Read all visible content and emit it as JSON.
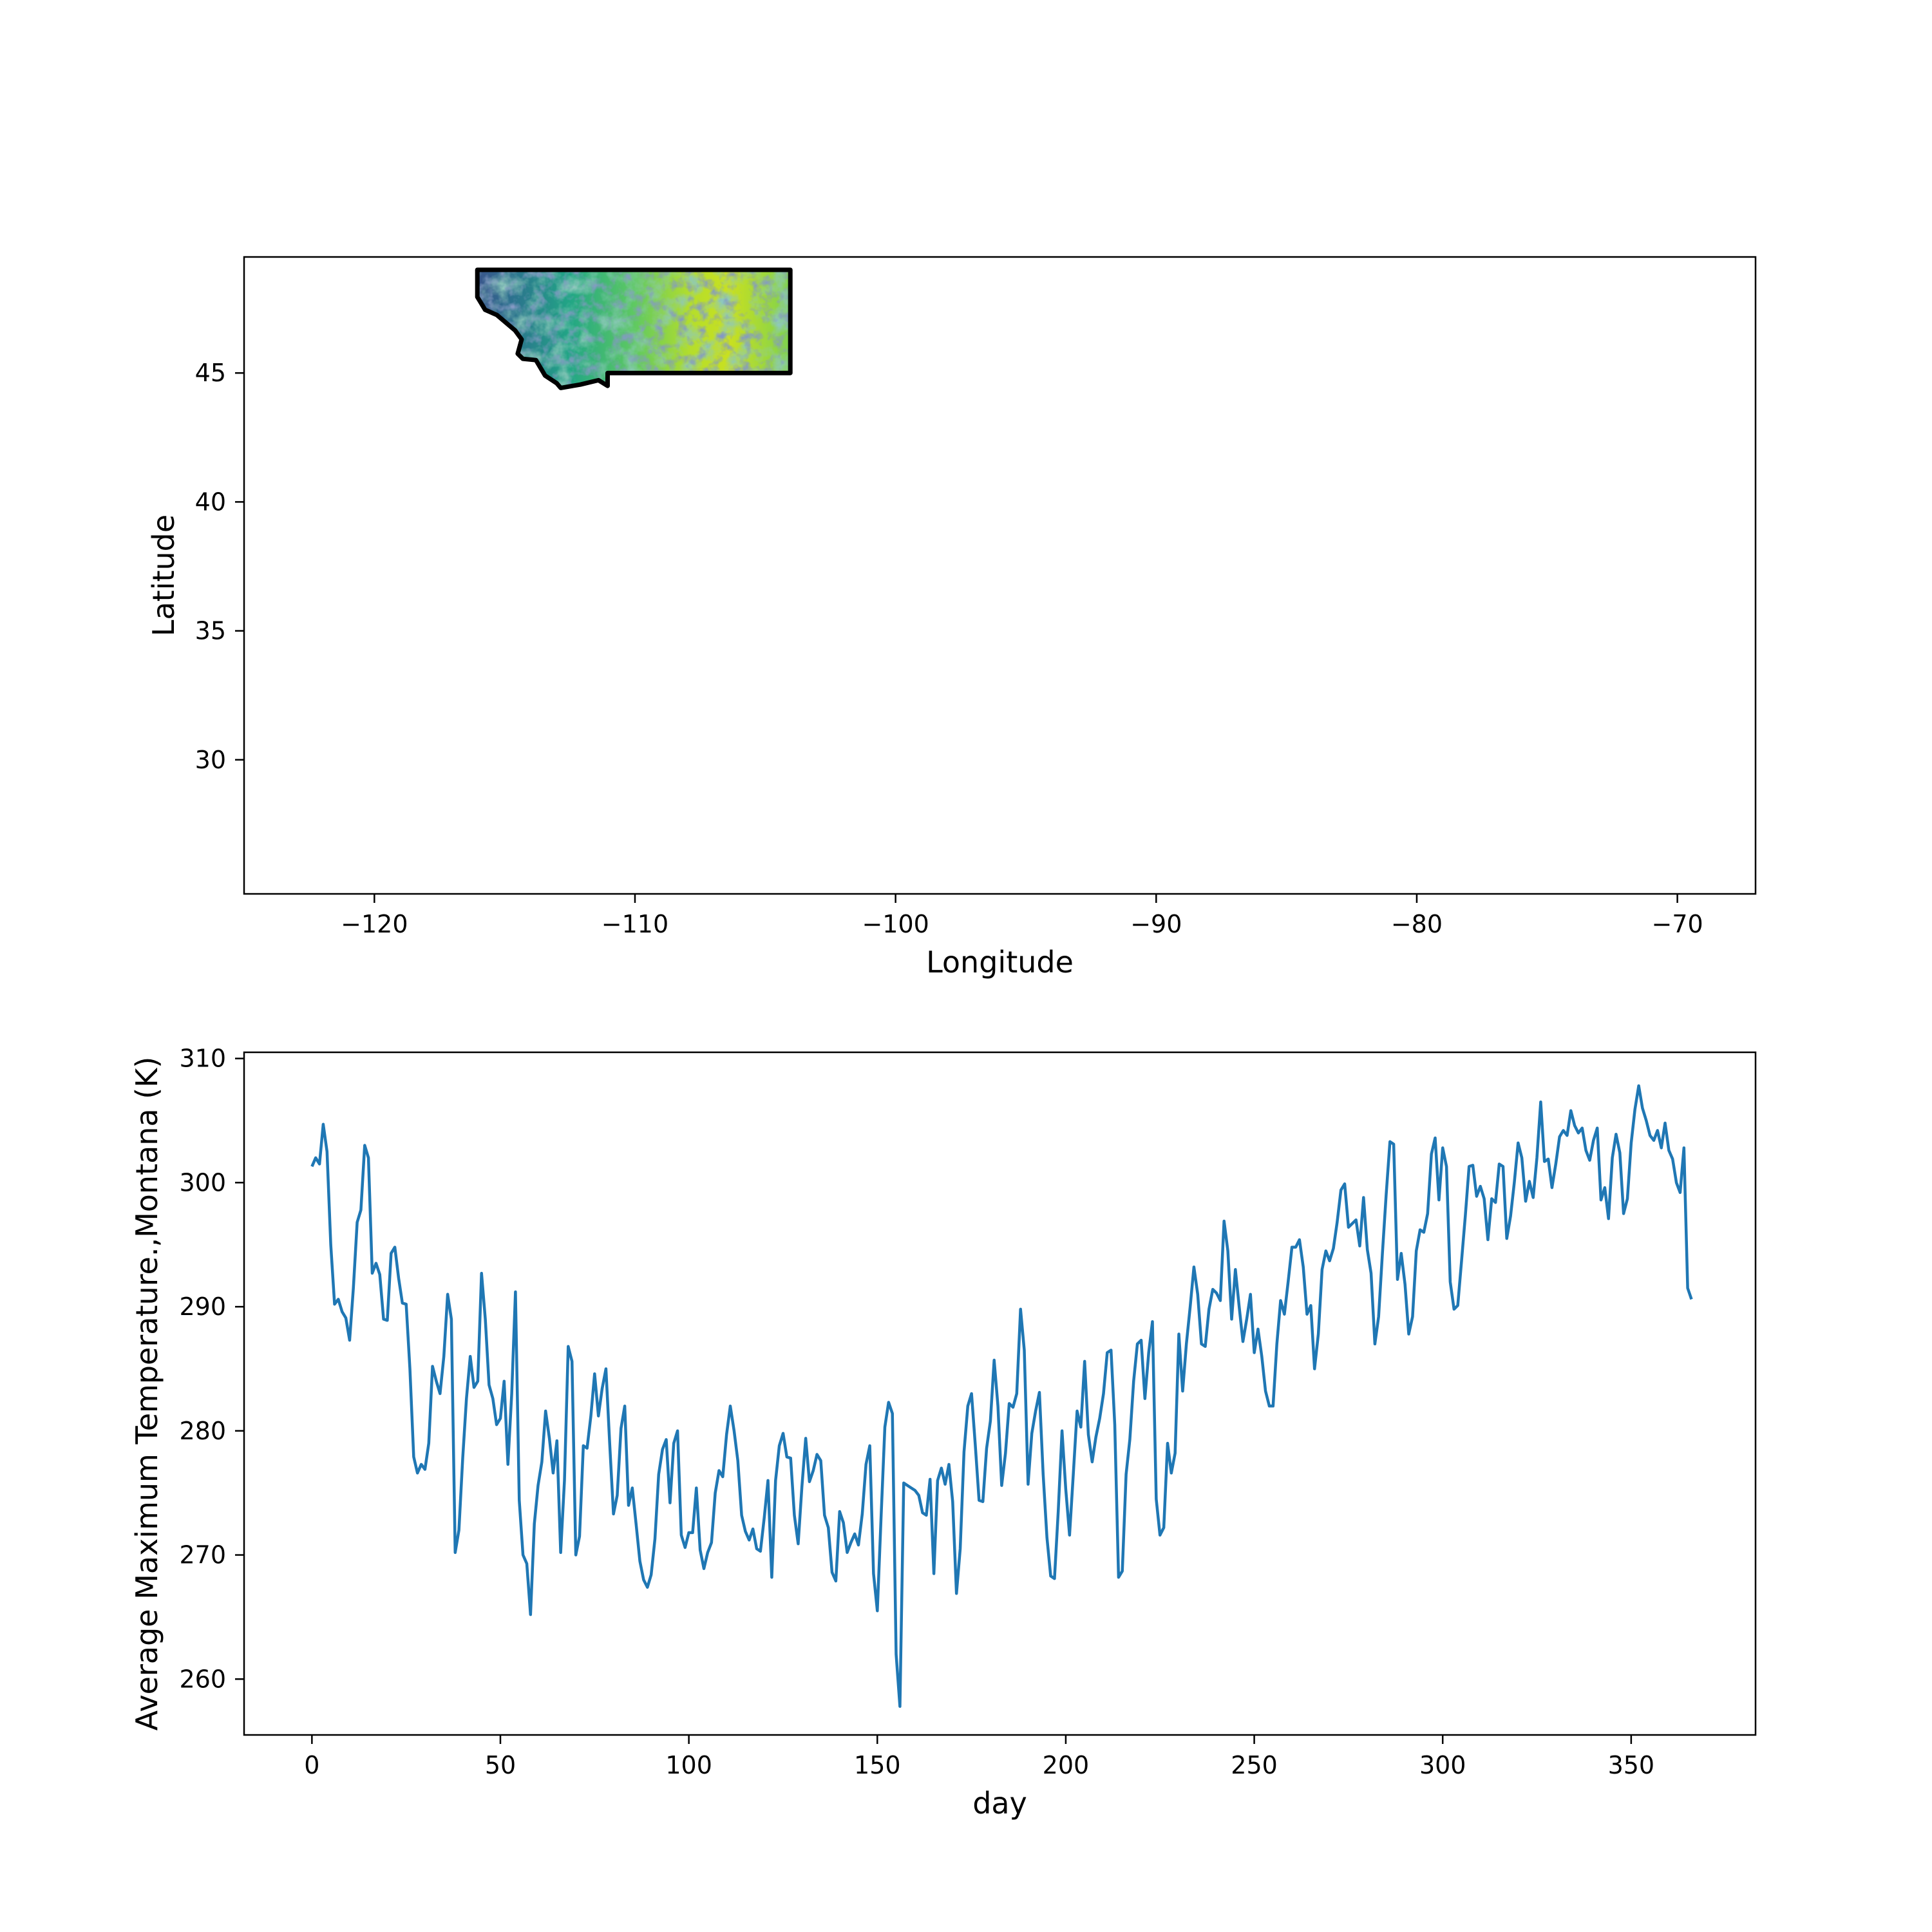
{
  "chart_data": [
    {
      "type": "heatmap",
      "subject": "Montana state outline",
      "xlabel": "Longitude",
      "ylabel": "Latitude",
      "xlim": [
        -125,
        -67
      ],
      "ylim": [
        24.8,
        49.5
      ],
      "xticks": [
        -120,
        -110,
        -100,
        -90,
        -80,
        -70
      ],
      "xtick_labels": [
        "−120",
        "−110",
        "−100",
        "−90",
        "−80",
        "−70"
      ],
      "yticks": [
        30,
        35,
        40,
        45
      ],
      "ytick_labels": [
        "30",
        "35",
        "40",
        "45"
      ],
      "grid": false,
      "colormap": "viridis",
      "outline_color": "#000000",
      "outline": [
        [
          -116.05,
          49.0
        ],
        [
          -104.04,
          49.0
        ],
        [
          -104.04,
          45.0
        ],
        [
          -111.05,
          45.0
        ],
        [
          -111.05,
          44.5
        ],
        [
          -111.4,
          44.72
        ],
        [
          -112.1,
          44.55
        ],
        [
          -112.85,
          44.42
        ],
        [
          -113.0,
          44.6
        ],
        [
          -113.45,
          44.9
        ],
        [
          -113.8,
          45.5
        ],
        [
          -114.3,
          45.55
        ],
        [
          -114.5,
          45.75
        ],
        [
          -114.35,
          46.3
        ],
        [
          -114.6,
          46.65
        ],
        [
          -115.3,
          47.25
        ],
        [
          -115.75,
          47.45
        ],
        [
          -116.05,
          47.95
        ],
        [
          -116.05,
          49.0
        ]
      ]
    },
    {
      "type": "line",
      "xlabel": "day",
      "ylabel": "Average Maximum Temperature.,Montana (K)",
      "xlim": [
        -18,
        383
      ],
      "ylim": [
        255.5,
        310.5
      ],
      "xticks": [
        0,
        50,
        100,
        150,
        200,
        250,
        300,
        350
      ],
      "yticks": [
        260,
        270,
        280,
        290,
        300,
        310
      ],
      "grid": false,
      "color": "#1f77b4",
      "x_start": 0,
      "x_step": 1,
      "y": [
        301.3,
        302.0,
        301.5,
        304.7,
        302.5,
        295.0,
        290.2,
        290.6,
        289.6,
        289.1,
        287.3,
        291.5,
        296.8,
        297.8,
        303.0,
        302.0,
        292.7,
        293.5,
        292.6,
        289.0,
        288.9,
        294.3,
        294.8,
        292.3,
        290.3,
        290.2,
        285.0,
        277.9,
        276.6,
        277.3,
        276.9,
        279.0,
        285.2,
        284.0,
        283.0,
        286.0,
        291.0,
        289.0,
        270.2,
        272.0,
        277.8,
        282.6,
        286.0,
        283.5,
        284.0,
        292.7,
        289.0,
        283.7,
        282.6,
        280.5,
        281.0,
        284.0,
        277.3,
        283.0,
        291.2,
        274.4,
        270.0,
        269.3,
        265.2,
        272.5,
        275.6,
        277.5,
        281.6,
        279.4,
        276.6,
        279.2,
        270.2,
        276.0,
        286.8,
        285.6,
        270.0,
        271.5,
        278.8,
        278.6,
        281.2,
        284.6,
        281.2,
        283.4,
        285.0,
        279.0,
        273.3,
        274.8,
        280.2,
        282.0,
        274.0,
        275.4,
        272.5,
        269.5,
        268.0,
        267.4,
        268.4,
        271.3,
        276.5,
        278.5,
        279.3,
        274.2,
        279.0,
        280.0,
        271.6,
        270.6,
        271.8,
        271.8,
        275.4,
        270.4,
        268.9,
        270.2,
        271.0,
        275.0,
        276.8,
        276.3,
        279.7,
        282.0,
        280.0,
        277.6,
        273.2,
        271.9,
        271.2,
        272.1,
        270.5,
        270.3,
        273.0,
        276.0,
        268.2,
        276.0,
        278.8,
        279.8,
        277.9,
        277.8,
        273.2,
        270.9,
        275.5,
        279.4,
        275.9,
        276.8,
        278.1,
        277.6,
        273.2,
        272.2,
        268.6,
        267.9,
        273.5,
        272.6,
        270.2,
        271.0,
        271.7,
        270.8,
        273.3,
        277.3,
        278.8,
        268.5,
        265.5,
        273.0,
        280.3,
        282.3,
        281.4,
        262.0,
        257.8,
        275.8,
        275.6,
        275.4,
        275.2,
        274.8,
        273.4,
        273.2,
        276.1,
        268.5,
        276.0,
        277.0,
        275.7,
        277.3,
        274.3,
        266.9,
        270.5,
        278.3,
        282.0,
        283.0,
        278.8,
        274.4,
        274.3,
        278.6,
        280.8,
        285.7,
        282.0,
        275.6,
        278.2,
        282.2,
        281.9,
        283.0,
        289.8,
        286.5,
        275.7,
        279.8,
        281.6,
        283.1,
        276.5,
        271.4,
        268.3,
        268.1,
        273.5,
        280.0,
        275.3,
        271.6,
        276.5,
        281.6,
        280.3,
        285.6,
        279.7,
        277.5,
        279.5,
        281.0,
        283.0,
        286.3,
        286.5,
        280.5,
        268.2,
        268.7,
        276.5,
        279.3,
        284.0,
        287.0,
        287.3,
        282.6,
        286.3,
        288.8,
        274.5,
        271.6,
        272.2,
        279.0,
        276.6,
        278.2,
        287.8,
        283.2,
        287.0,
        290.0,
        293.2,
        291.0,
        287.0,
        286.8,
        289.8,
        291.4,
        291.1,
        290.5,
        296.9,
        294.5,
        289.0,
        293.0,
        290.0,
        287.2,
        289.0,
        291.0,
        286.3,
        288.2,
        286.0,
        283.2,
        282.0,
        282.0,
        287.0,
        290.5,
        289.4,
        292.0,
        294.8,
        294.8,
        295.4,
        293.2,
        289.4,
        290.1,
        285.0,
        287.8,
        293.0,
        294.5,
        293.7,
        294.7,
        296.8,
        299.4,
        299.9,
        296.4,
        296.7,
        297.0,
        294.9,
        298.8,
        294.6,
        292.7,
        287.0,
        289.2,
        294.3,
        299.0,
        303.3,
        303.1,
        292.2,
        294.3,
        291.8,
        287.8,
        289.2,
        294.5,
        296.2,
        296.0,
        297.5,
        302.3,
        303.6,
        298.6,
        302.8,
        301.3,
        292.0,
        289.8,
        290.1,
        293.7,
        297.3,
        301.3,
        301.4,
        298.9,
        299.7,
        298.7,
        295.4,
        298.7,
        298.4,
        301.5,
        301.3,
        295.5,
        297.3,
        300.0,
        303.2,
        302.0,
        298.5,
        300.1,
        298.8,
        302.0,
        306.5,
        301.7,
        301.9,
        299.6,
        301.5,
        303.7,
        304.2,
        303.8,
        305.8,
        304.6,
        304.0,
        304.4,
        302.6,
        301.8,
        303.4,
        304.4,
        298.6,
        299.6,
        297.1,
        302.0,
        303.9,
        302.4,
        297.5,
        298.7,
        303.2,
        305.9,
        307.8,
        306.0,
        305.0,
        303.8,
        303.4,
        304.2,
        302.8,
        304.8,
        302.6,
        301.9,
        300.0,
        299.2,
        302.8,
        291.5,
        290.6
      ]
    }
  ]
}
